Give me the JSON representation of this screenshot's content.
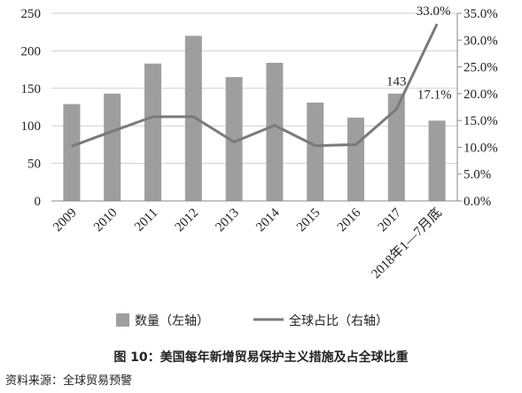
{
  "chart_data": {
    "type": "bar",
    "categories": [
      "2009",
      "2010",
      "2011",
      "2012",
      "2013",
      "2014",
      "2015",
      "2016",
      "2017",
      "2018年1—7月底"
    ],
    "series": [
      {
        "name": "数量（左轴）",
        "type": "bar",
        "axis": "left",
        "values": [
          129,
          143,
          183,
          220,
          165,
          184,
          131,
          111,
          143,
          107
        ],
        "color": "#9e9e9e"
      },
      {
        "name": "全球占比（右轴）",
        "type": "line",
        "axis": "right",
        "values": [
          10.2,
          13.0,
          15.7,
          15.7,
          11.0,
          14.1,
          10.3,
          10.5,
          17.1,
          33.0
        ],
        "color": "#7a7a7a"
      }
    ],
    "y_left": {
      "ylim": [
        0,
        250
      ],
      "ticks": [
        "0",
        "50",
        "100",
        "150",
        "200",
        "250"
      ]
    },
    "y_right": {
      "ylim": [
        0,
        35
      ],
      "ticks": [
        "0.0%",
        "5.0%",
        "10.0%",
        "15.0%",
        "20.0%",
        "25.0%",
        "30.0%",
        "35.0%"
      ]
    },
    "data_labels": [
      {
        "series": 0,
        "index": 8,
        "text": "143"
      },
      {
        "series": 1,
        "index": 8,
        "text": "17.1%"
      },
      {
        "series": 1,
        "index": 9,
        "text": "33.0%"
      }
    ],
    "grid": true,
    "legend_position": "bottom",
    "title": "图 10：美国每年新增贸易保护主义措施及占全球比重"
  },
  "source": "资料来源：全球贸易预警"
}
